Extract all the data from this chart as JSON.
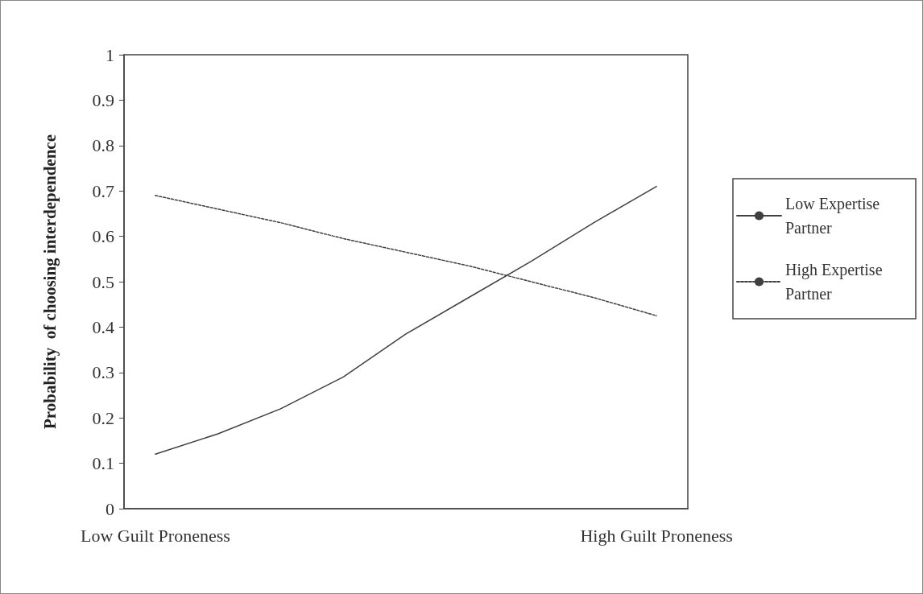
{
  "chart_data": {
    "type": "line",
    "ylabel": "Probability  of choosing interdependence",
    "categories": [
      "Low Guilt Proneness",
      null,
      null,
      null,
      null,
      null,
      null,
      null,
      "High Guilt Proneness"
    ],
    "series": [
      {
        "name": "Low Expertise Partner",
        "color": "#404040",
        "line_style": "solid",
        "values": [
          0.12,
          0.165,
          0.22,
          0.29,
          0.385,
          0.465,
          0.545,
          0.63,
          0.71
        ]
      },
      {
        "name": "High Expertise Partner",
        "color": "#404040",
        "line_style": "dotted",
        "values": [
          0.69,
          0.66,
          0.63,
          0.595,
          0.565,
          0.535,
          0.5,
          0.465,
          0.425
        ]
      }
    ],
    "ylim": [
      0,
      1
    ],
    "yticks": [
      0,
      0.1,
      0.2,
      0.3,
      0.4,
      0.5,
      0.6,
      0.7,
      0.8,
      0.9,
      1
    ],
    "grid": false,
    "legend": "right",
    "marker": "none"
  }
}
